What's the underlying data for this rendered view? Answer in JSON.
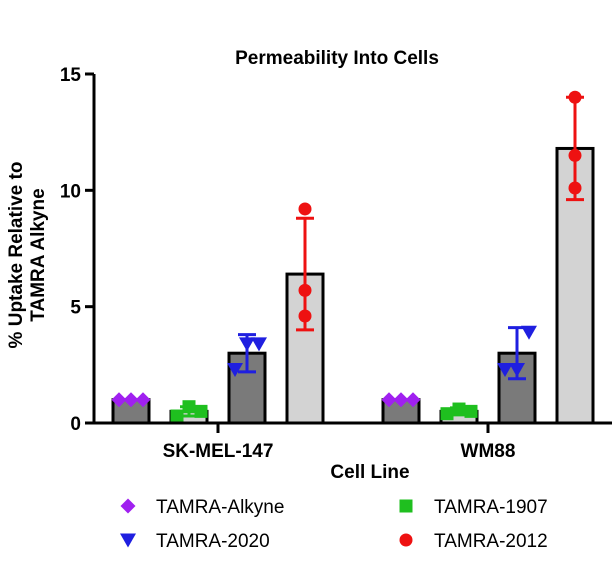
{
  "chart_data": {
    "type": "bar",
    "title": "Permeability Into Cells",
    "xlabel": "Cell Line",
    "ylabel_lines": [
      "% Uptake  Relative to",
      "TAMRA Alkyne"
    ],
    "ylim": [
      0,
      15
    ],
    "yticks": [
      0,
      5,
      10,
      15
    ],
    "groups": [
      "SK-MEL-147",
      "WM88"
    ],
    "grid": false,
    "legend_position": "bottom",
    "series": [
      {
        "name": "TAMRA-Alkyne",
        "marker": "diamond",
        "color": "#a020f0",
        "bar_color": "#7a7a7a",
        "means": [
          1.0,
          1.0
        ],
        "errors": [
          0,
          0
        ],
        "points": [
          [
            1.0,
            1.0,
            1.0
          ],
          [
            1.0,
            1.0,
            1.0
          ]
        ]
      },
      {
        "name": "TAMRA-1907",
        "marker": "square",
        "color": "#1fbf1f",
        "bar_color": "#d3d3d3",
        "means": [
          0.5,
          0.5
        ],
        "errors": [
          0.2,
          0.15
        ],
        "points": [
          [
            0.3,
            0.7,
            0.5
          ],
          [
            0.4,
            0.6,
            0.5
          ]
        ]
      },
      {
        "name": "TAMRA-2020",
        "marker": "triangle-down",
        "color": "#1f1fe0",
        "bar_color": "#7a7a7a",
        "means": [
          3.0,
          3.0
        ],
        "errors": [
          0.8,
          1.1
        ],
        "points": [
          [
            2.3,
            3.4,
            3.4
          ],
          [
            2.3,
            2.3,
            3.9
          ]
        ]
      },
      {
        "name": "TAMRA-2012",
        "marker": "circle",
        "color": "#ee1111",
        "bar_color": "#d3d3d3",
        "means": [
          6.4,
          11.8
        ],
        "errors": [
          2.4,
          2.2
        ],
        "points": [
          [
            4.6,
            5.7,
            9.2
          ],
          [
            10.1,
            11.5,
            14.0
          ]
        ]
      }
    ]
  }
}
